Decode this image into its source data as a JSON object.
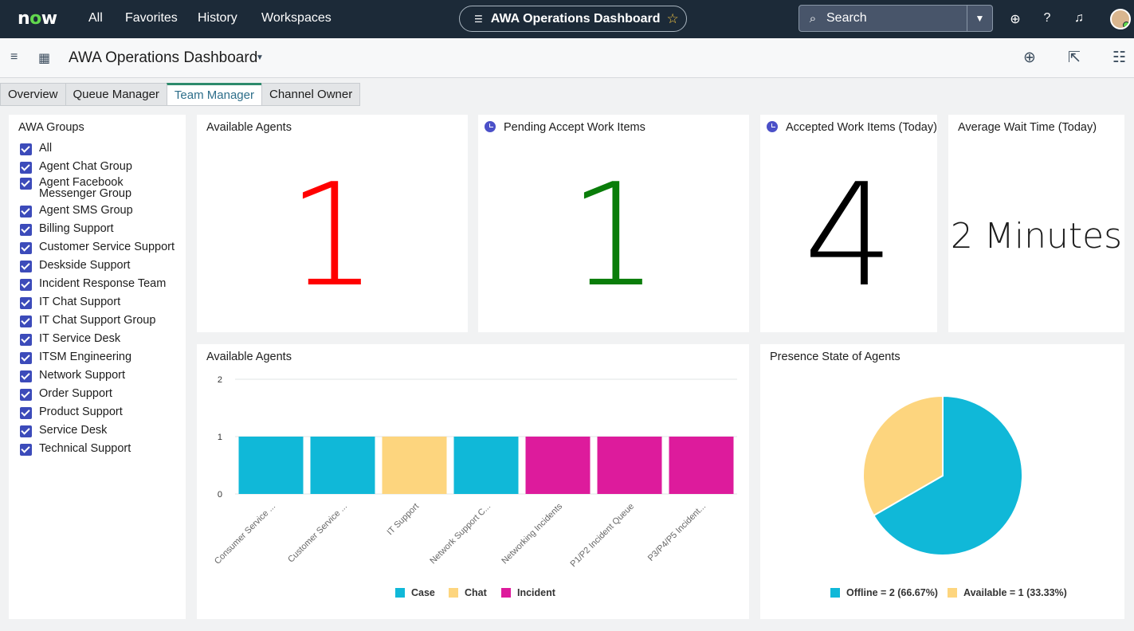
{
  "topnav": {
    "logo": "now",
    "links": [
      "All",
      "Favorites",
      "History",
      "Workspaces"
    ],
    "dashboard_pill": "AWA Operations Dashboard",
    "search_placeholder": "Search"
  },
  "subheader": {
    "title": "AWA Operations Dashboard"
  },
  "tabs": [
    {
      "label": "Overview",
      "active": false
    },
    {
      "label": "Queue Manager",
      "active": false
    },
    {
      "label": "Team Manager",
      "active": true
    },
    {
      "label": "Channel Owner",
      "active": false
    }
  ],
  "groups": {
    "title": "AWA Groups",
    "items": [
      "All",
      "Agent Chat Group",
      "Agent Facebook Messenger Group",
      "Agent SMS Group",
      "Billing Support",
      "Customer Service Support",
      "Deskside Support",
      "Incident Response Team",
      "IT Chat Support",
      "IT Chat Support Group",
      "IT Service Desk",
      "ITSM Engineering",
      "Network Support",
      "Order Support",
      "Product Support",
      "Service Desk",
      "Technical Support"
    ]
  },
  "scores": {
    "available": {
      "title": "Available Agents",
      "value": "1",
      "color": "#ff0000"
    },
    "pending": {
      "title": "Pending Accept Work Items",
      "value": "1",
      "color": "#0a7d0a"
    },
    "accepted": {
      "title": "Accepted Work Items (Today)",
      "value": "4",
      "color": "#000000"
    },
    "wait": {
      "title": "Average Wait Time (Today)",
      "value": "2 Minutes",
      "color": "#1d1d1d"
    }
  },
  "colors": {
    "case": "#10b8d8",
    "chat": "#fdd57e",
    "incident": "#dd1b9c",
    "accent": "#3c4bba"
  },
  "chart_data": [
    {
      "type": "bar",
      "title": "Available Agents",
      "categories": [
        "Consumer Service ...",
        "Customer Service ...",
        "IT Support",
        "Network Support C...",
        "Networking Incidents",
        "P1/P2 Incident Queue",
        "P3/P4/P5 Incident..."
      ],
      "values": [
        1,
        1,
        1,
        1,
        1,
        1,
        1
      ],
      "bar_series": [
        "Case",
        "Case",
        "Chat",
        "Case",
        "Incident",
        "Incident",
        "Incident"
      ],
      "series_names": [
        "Case",
        "Chat",
        "Incident"
      ],
      "ylim": [
        0,
        2
      ],
      "yticks": [
        0,
        1,
        2
      ],
      "legend": "bottom"
    },
    {
      "type": "pie",
      "title": "Presence State of Agents",
      "slices": [
        {
          "label": "Offline",
          "value": 2,
          "legend": "Offline = 2 (66.67%)"
        },
        {
          "label": "Available",
          "value": 1,
          "legend": "Available = 1 (33.33%)"
        }
      ],
      "legend": "bottom"
    }
  ]
}
